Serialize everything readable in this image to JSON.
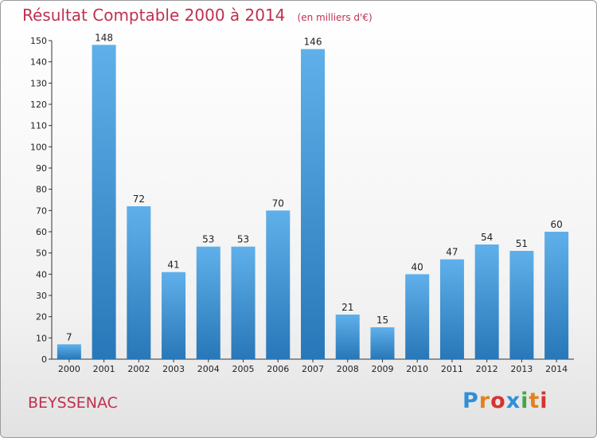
{
  "header": {
    "title": "Résultat Comptable 2000 à 2014",
    "subtitle": "(en milliers d'€)"
  },
  "footer": {
    "commune": "BEYSSENAC",
    "logo": [
      "P",
      "r",
      "o",
      "x",
      "i",
      "t",
      "i"
    ],
    "logo_colors": [
      "#2f8fd8",
      "#e2821f",
      "#d8322f",
      "#2f8fd8",
      "#43a843",
      "#e2821f",
      "#d8322f"
    ]
  },
  "chart_data": {
    "type": "bar",
    "title": "Résultat Comptable 2000 à 2014",
    "subtitle": "(en milliers d'€)",
    "xlabel": "",
    "ylabel": "",
    "categories": [
      "2000",
      "2001",
      "2002",
      "2003",
      "2004",
      "2005",
      "2006",
      "2007",
      "2008",
      "2009",
      "2010",
      "2011",
      "2012",
      "2013",
      "2014"
    ],
    "values": [
      7,
      148,
      72,
      41,
      53,
      53,
      70,
      146,
      21,
      15,
      40,
      47,
      54,
      51,
      60
    ],
    "ylim": [
      0,
      150
    ],
    "yticks": [
      0,
      10,
      20,
      30,
      40,
      50,
      60,
      70,
      80,
      90,
      100,
      110,
      120,
      130,
      140,
      150
    ],
    "grid": false,
    "bar_color": "#4a9fe0"
  }
}
